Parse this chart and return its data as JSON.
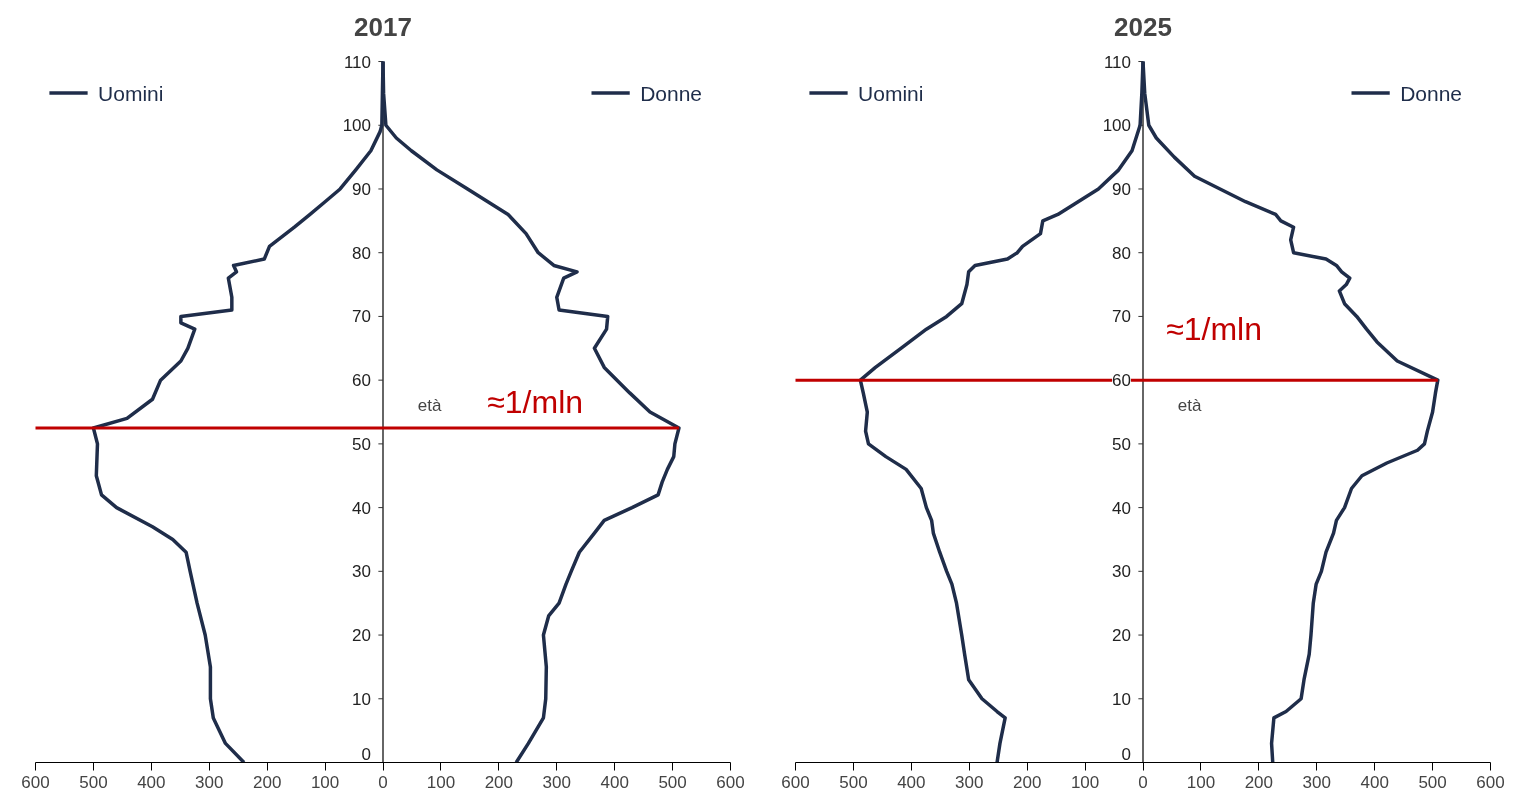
{
  "chart_data": [
    {
      "type": "line",
      "title": "2017",
      "ylabel": "età",
      "orientation": "horizontal",
      "xlim": [
        -600,
        600
      ],
      "ylim": [
        0,
        110
      ],
      "xticks": [
        {
          "value": -600,
          "label": "600"
        },
        {
          "value": -500,
          "label": "500"
        },
        {
          "value": -400,
          "label": "400"
        },
        {
          "value": -300,
          "label": "300"
        },
        {
          "value": -200,
          "label": "200"
        },
        {
          "value": -100,
          "label": "100"
        },
        0,
        100,
        200,
        300,
        400,
        500,
        600
      ],
      "yticks": [
        0,
        10,
        20,
        30,
        40,
        50,
        60,
        70,
        80,
        90,
        100,
        110
      ],
      "grid": false,
      "legend": "top",
      "marker": "none",
      "line_style": "solid",
      "series": [
        {
          "name": "Uomini",
          "color": "#1f2d4a",
          "x": [
            0,
            3,
            7,
            10,
            15,
            20,
            25,
            30,
            33,
            35,
            37,
            40,
            42,
            45,
            50,
            52.5,
            54,
            57,
            60,
            63,
            65,
            68,
            69,
            70,
            71,
            73,
            76,
            77,
            78,
            79,
            81,
            84,
            86,
            88,
            90,
            93,
            96,
            99,
            100,
            105,
            110
          ],
          "values": [
            -240,
            -272,
            -293,
            -298,
            -298,
            -307,
            -321,
            -333,
            -340,
            -363,
            -398,
            -460,
            -486,
            -495,
            -493,
            -500,
            -442,
            -398,
            -384,
            -349,
            -337,
            -325,
            -349,
            -349,
            -261,
            -261,
            -267,
            -253,
            -258,
            -205,
            -196,
            -153,
            -126,
            -100,
            -74,
            -47,
            -21,
            -5,
            -2,
            -1,
            0
          ]
        },
        {
          "name": "Donne",
          "color": "#1f2d4a",
          "x": [
            0,
            3,
            7,
            10,
            15,
            20,
            23,
            25,
            28,
            30,
            33,
            36,
            38,
            40,
            42,
            44,
            46,
            48,
            50,
            52.5,
            55,
            58,
            62,
            65,
            68,
            70,
            71,
            73,
            76,
            77,
            78,
            80,
            83,
            86,
            88,
            90,
            93,
            96,
            98,
            100,
            105,
            110
          ],
          "values": [
            230,
            251,
            277,
            281,
            282,
            277,
            286,
            304,
            316,
            325,
            339,
            365,
            382,
            430,
            475,
            482,
            491,
            502,
            504,
            511,
            461,
            426,
            382,
            365,
            386,
            388,
            304,
            300,
            312,
            335,
            295,
            268,
            247,
            216,
            181,
            146,
            93,
            49,
            23,
            5,
            1,
            0
          ]
        }
      ],
      "ref_lines": [
        {
          "axis": "y",
          "value": 52.5,
          "label": "≈1/mln",
          "color": "#c00000"
        }
      ]
    },
    {
      "type": "line",
      "title": "2025",
      "ylabel": "età",
      "orientation": "horizontal",
      "xlim": [
        -600,
        600
      ],
      "ylim": [
        0,
        110
      ],
      "xticks": [
        {
          "value": -600,
          "label": "600"
        },
        {
          "value": -500,
          "label": "500"
        },
        {
          "value": -400,
          "label": "400"
        },
        {
          "value": -300,
          "label": "300"
        },
        {
          "value": -200,
          "label": "200"
        },
        {
          "value": -100,
          "label": "100"
        },
        0,
        100,
        200,
        300,
        400,
        500,
        600
      ],
      "yticks": [
        0,
        10,
        20,
        30,
        40,
        50,
        60,
        70,
        80,
        90,
        100,
        110
      ],
      "grid": false,
      "legend": "top",
      "marker": "none",
      "line_style": "solid",
      "series": [
        {
          "name": "Uomini",
          "color": "#1f2d4a",
          "x": [
            0,
            3,
            7,
            8,
            10,
            13,
            17,
            20,
            25,
            28,
            30,
            33,
            36,
            38,
            40,
            43,
            46,
            48,
            50,
            52,
            55,
            58,
            60,
            62,
            65,
            68,
            70,
            72,
            75,
            77,
            78,
            79,
            80,
            81,
            83,
            85,
            86,
            88,
            90,
            93,
            96,
            100,
            105,
            110
          ],
          "values": [
            -252,
            -247,
            -238,
            -252,
            -278,
            -301,
            -308,
            -313,
            -322,
            -330,
            -339,
            -351,
            -362,
            -365,
            -374,
            -383,
            -409,
            -444,
            -474,
            -479,
            -476,
            -483,
            -488,
            -462,
            -418,
            -374,
            -339,
            -313,
            -304,
            -301,
            -290,
            -234,
            -217,
            -208,
            -177,
            -173,
            -147,
            -112,
            -77,
            -42,
            -19,
            -5,
            -2,
            0
          ]
        },
        {
          "name": "Donne",
          "color": "#1f2d4a",
          "x": [
            0,
            3,
            7,
            8,
            10,
            13,
            17,
            20,
            25,
            28,
            30,
            33,
            36,
            38,
            40,
            43,
            45,
            47,
            49,
            50,
            52,
            55,
            58,
            60,
            63,
            66,
            68,
            70,
            72,
            74,
            75,
            76,
            77,
            78,
            79,
            80,
            82,
            84,
            85,
            86,
            88,
            90,
            92,
            95,
            98,
            100,
            105,
            110
          ],
          "values": [
            224,
            222,
            226,
            247,
            273,
            278,
            287,
            290,
            294,
            299,
            308,
            316,
            329,
            334,
            348,
            360,
            378,
            421,
            474,
            486,
            491,
            500,
            505,
            509,
            439,
            404,
            386,
            369,
            348,
            339,
            351,
            357,
            343,
            334,
            316,
            260,
            255,
            260,
            238,
            229,
            177,
            133,
            89,
            54,
            23,
            10,
            3,
            0
          ]
        }
      ],
      "ref_lines": [
        {
          "axis": "y",
          "value": 60,
          "label": "≈1/mln",
          "color": "#c00000"
        }
      ]
    }
  ]
}
